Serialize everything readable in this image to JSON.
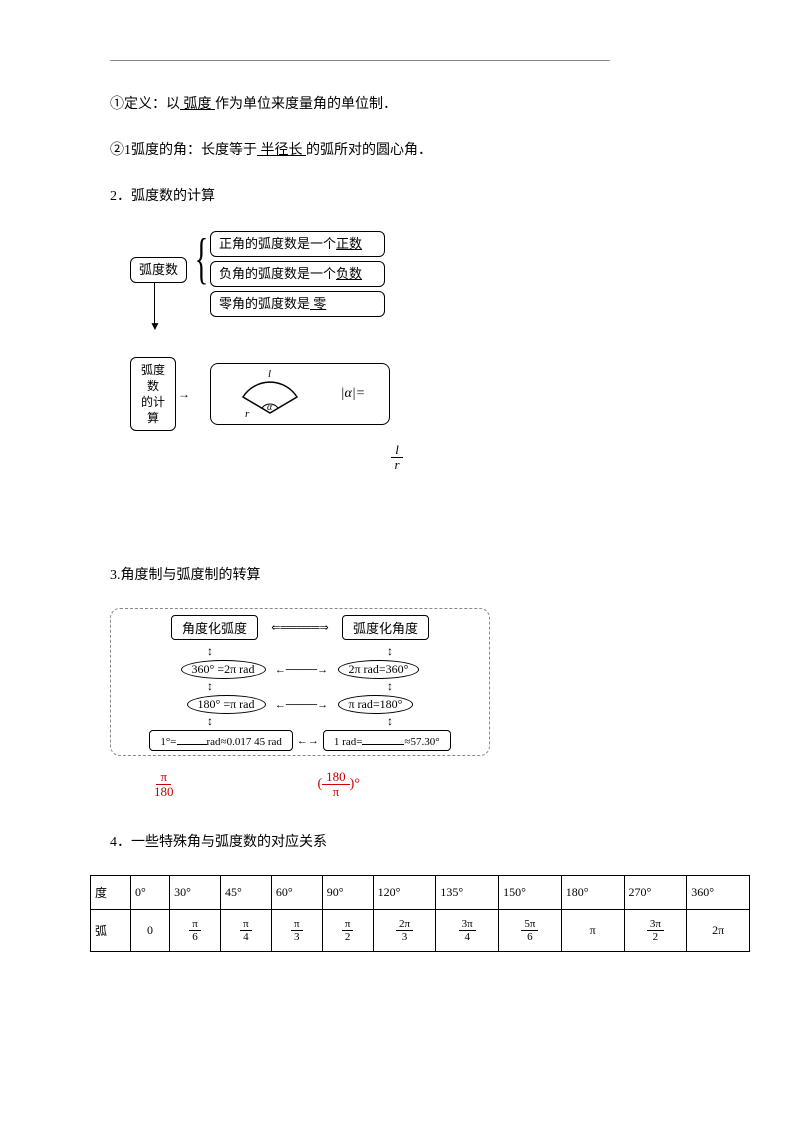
{
  "line1": {
    "prefix": "①定义：以",
    "u1": " 弧度 ",
    "suffix": "作为单位来度量角的单位制．"
  },
  "line2": {
    "prefix": "②1弧度的角：长度等于",
    "u1": " 半径长 ",
    "suffix": "的弧所对的圆心角．"
  },
  "line3": "2．弧度数的计算",
  "d1": {
    "node_left": "弧度数",
    "br1_a": "正角的弧度数是一个",
    "br1_b": "正数",
    "br2_a": "负角的弧度数是一个",
    "br2_b": "负数",
    "br3_a": "零角的弧度数是",
    "br3_blank": "    零    ",
    "calc_label_a": "弧度数",
    "calc_label_b": "的计算",
    "l": "l",
    "r": "r",
    "alpha": "α",
    "alpha_eq": "|α|=",
    "blank": "   "
  },
  "lr": {
    "num": "l",
    "den": "r"
  },
  "line4": "3.角度制与弧度制的转算",
  "d2": {
    "top_left": "角度化弧度",
    "top_right": "弧度化角度",
    "o1": "360° =2π rad",
    "o2": "2π rad=360°",
    "o3": "180° =π rad",
    "o4": "π rad=180°",
    "b1a": "1°=",
    "b1b": "rad≈0.017 45 rad",
    "b2a": "1 rad=",
    "b2b": "≈57.30°"
  },
  "red": {
    "f1n": "π",
    "f1d": "180",
    "f2a": "(",
    "f2n": "180",
    "f2d": "π",
    "f2b": ")°"
  },
  "line5": "4．一些特殊角与弧度数的对应关系",
  "table": {
    "h_deg": "度",
    "h_rad": "弧",
    "degs": [
      "0°",
      "30°",
      "45°",
      "60°",
      "90°",
      "120°",
      "135°",
      "150°",
      "180°",
      "270°",
      "360°"
    ],
    "rads": [
      {
        "t": "0"
      },
      {
        "n": "π",
        "d": "6"
      },
      {
        "n": "π",
        "d": "4"
      },
      {
        "n": "π",
        "d": "3"
      },
      {
        "n": "π",
        "d": "2"
      },
      {
        "n": "2π",
        "d": "3"
      },
      {
        "n": "3π",
        "d": "4"
      },
      {
        "n": "5π",
        "d": "6"
      },
      {
        "t": "π"
      },
      {
        "n": "3π",
        "d": "2"
      },
      {
        "t": "2π"
      }
    ]
  },
  "colors": {
    "red": "#c00000",
    "text": "#000000",
    "rule": "#888888"
  }
}
